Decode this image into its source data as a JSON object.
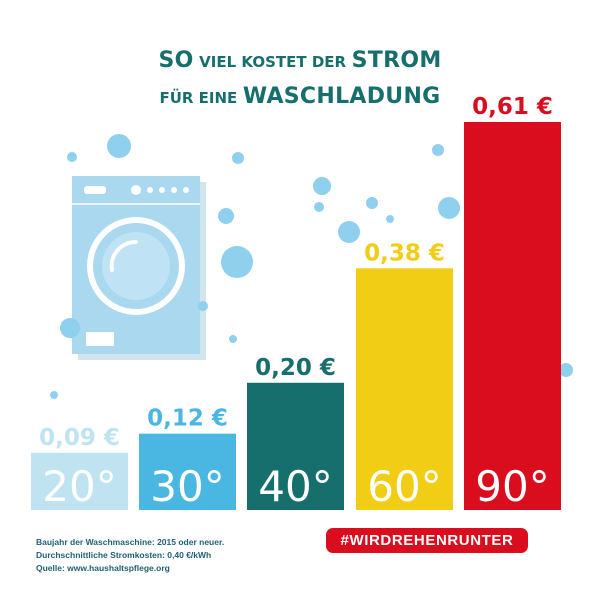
{
  "title": {
    "line1_big_a": "SO",
    "line1_small": "VIEL KOSTET DER",
    "line1_big_b": "STROM",
    "line2_small": "FÜR EINE",
    "line2_big": "WASCHLADUNG"
  },
  "chart_data": {
    "type": "bar",
    "categories": [
      "20°",
      "30°",
      "40°",
      "60°",
      "90°"
    ],
    "values": [
      0.09,
      0.12,
      0.2,
      0.38,
      0.61
    ],
    "value_labels": [
      "0,09 €",
      "0,12 €",
      "0,20 €",
      "0,38 €",
      "0,61 €"
    ],
    "colors": [
      "#bfe3f0",
      "#4ab7e2",
      "#166f6c",
      "#f2cd15",
      "#d90d1e"
    ],
    "ylim": [
      0,
      0.61
    ],
    "grid": false,
    "title": "SO VIEL KOSTET DER STROM FÜR EINE WASCHLADUNG",
    "xlabel": "",
    "ylabel": ""
  },
  "footnotes": [
    "Baujahr der Waschmaschine: 2015 oder neuer.",
    "Durchschnittliche Stromkosten: 0,40 €/kWh",
    "Quelle: www.haushaltspflege.org"
  ],
  "hashtag": "#WIRDREHENRUNTER",
  "icons": [
    "washing-machine-icon",
    "bubble-icon"
  ]
}
